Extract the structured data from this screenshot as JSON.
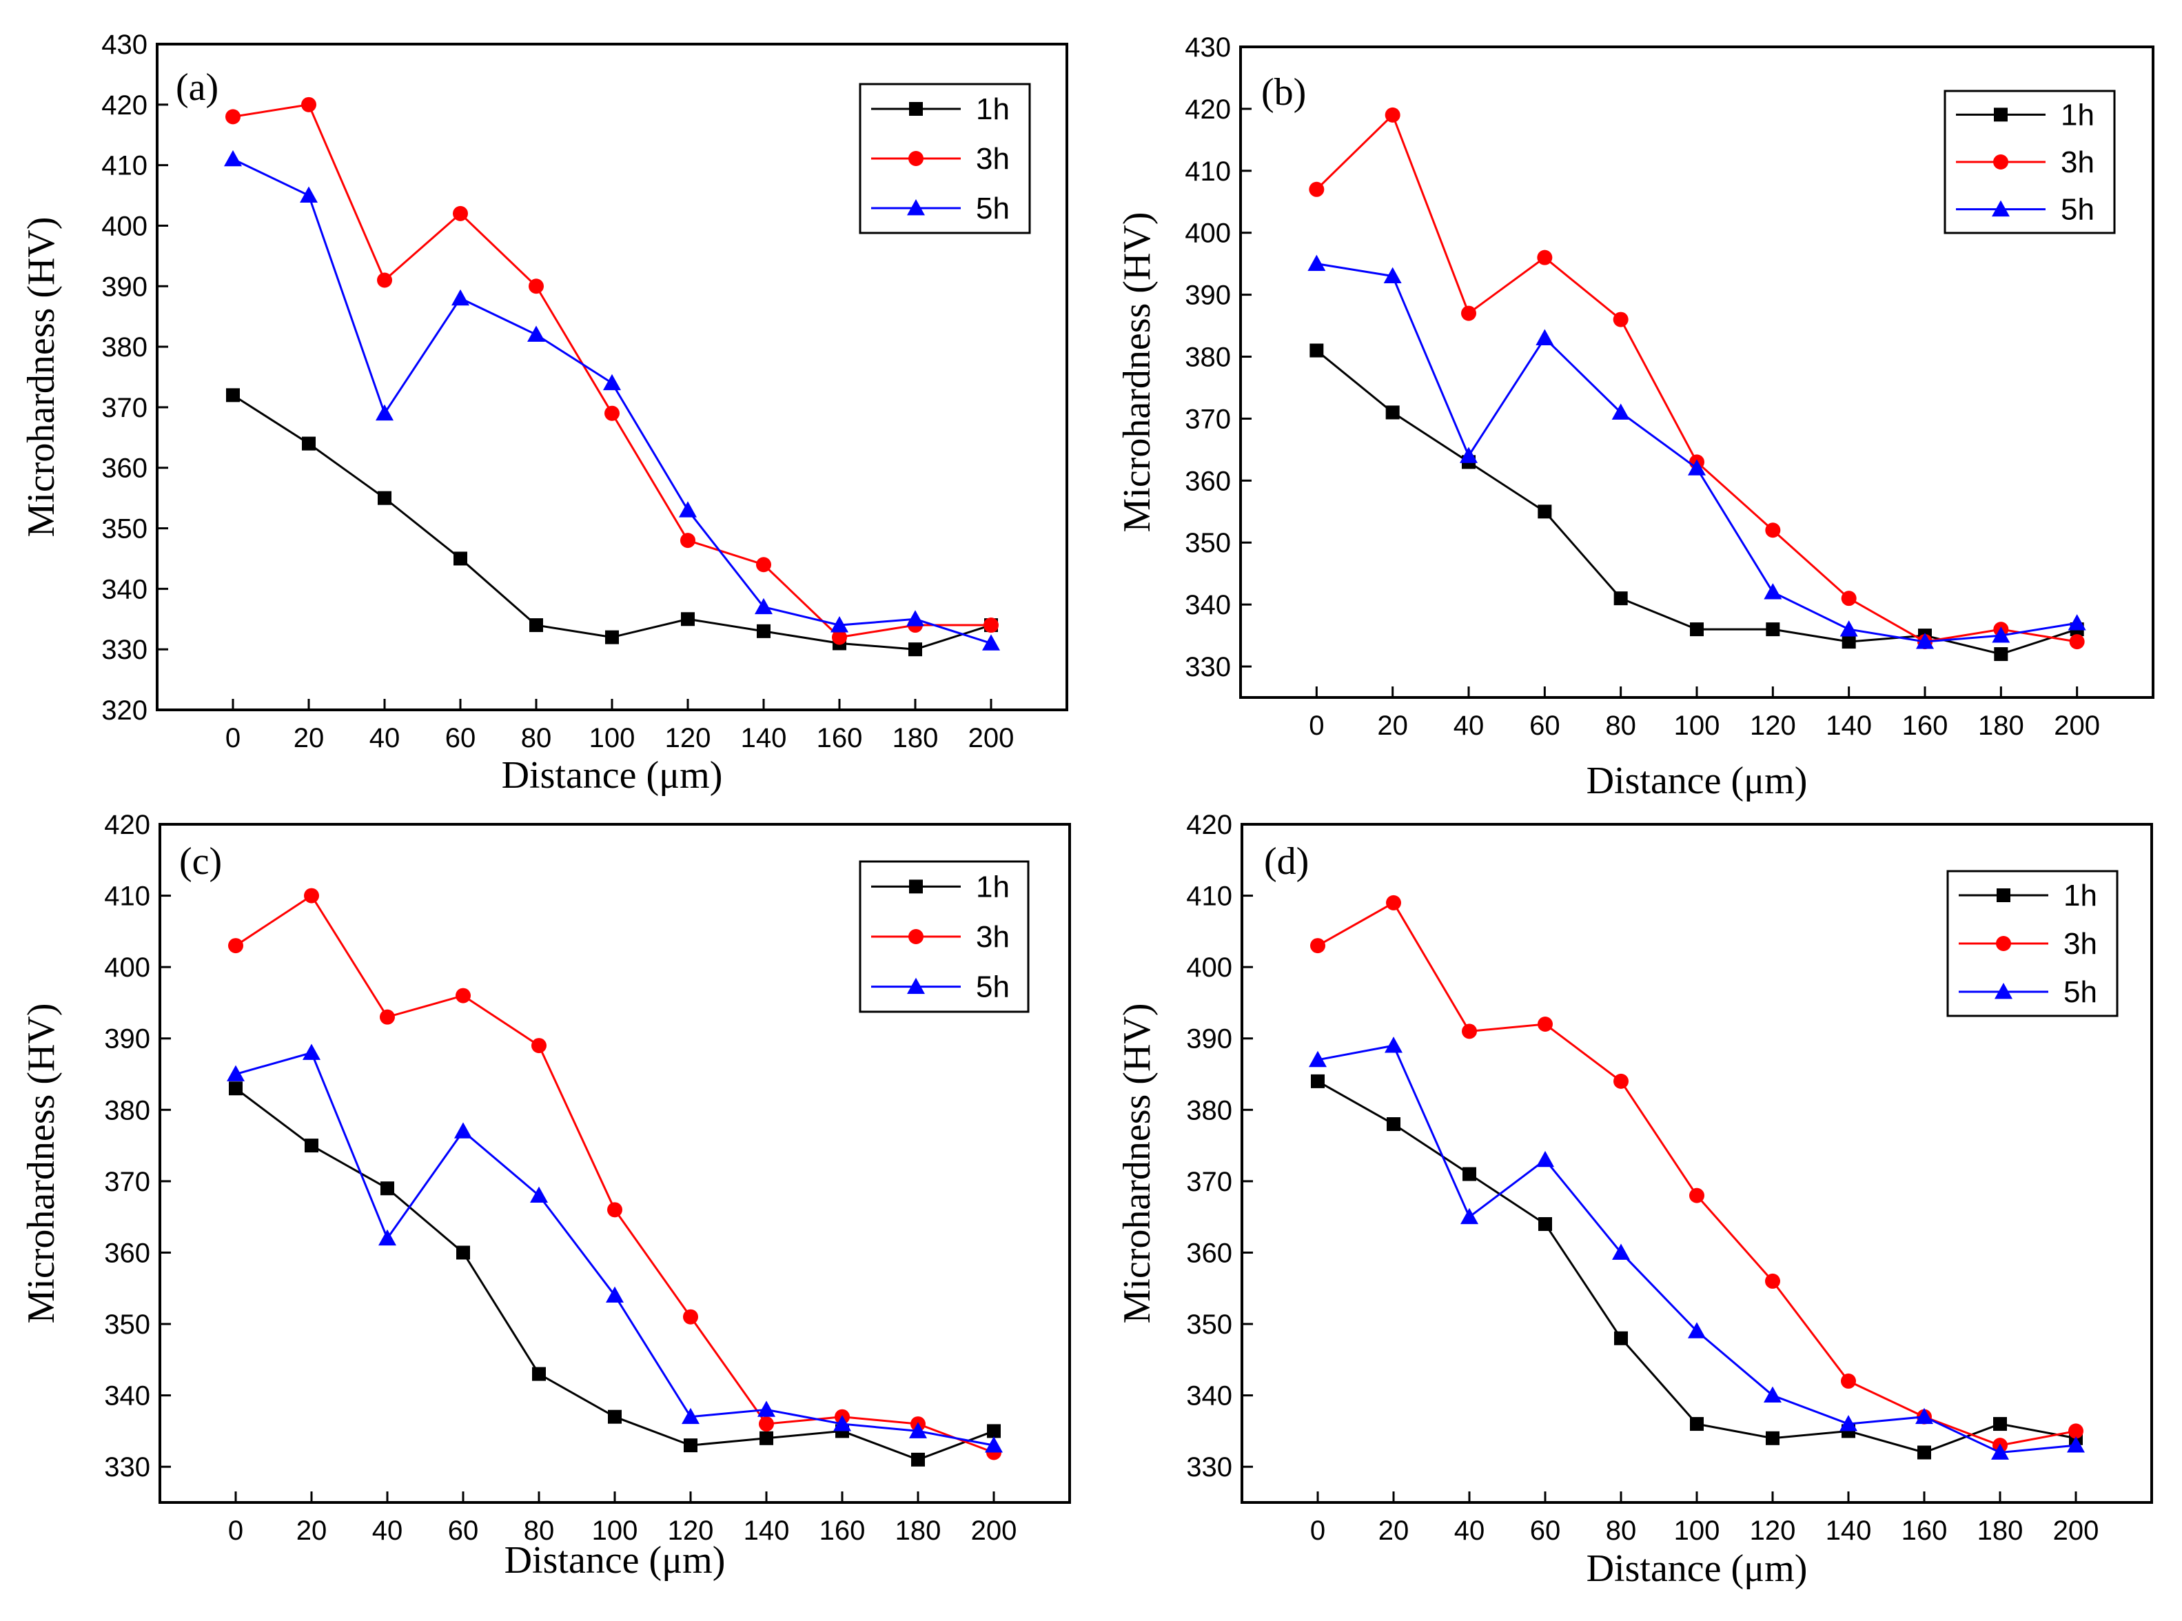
{
  "chart_data": [
    {
      "panel": "(a)",
      "type": "line",
      "xlabel": "Distance (μm)",
      "ylabel": "Microhardness (HV)",
      "x": [
        0,
        20,
        40,
        60,
        80,
        100,
        120,
        140,
        160,
        180,
        200
      ],
      "xlim": [
        -20,
        220
      ],
      "ylim": [
        320,
        430
      ],
      "yticks": [
        320,
        330,
        340,
        350,
        360,
        370,
        380,
        390,
        400,
        410,
        420,
        430
      ],
      "legend_position": "top-right",
      "series": [
        {
          "name": "1h",
          "color": "#000000",
          "marker": "square",
          "values": [
            372,
            364,
            355,
            345,
            334,
            332,
            335,
            333,
            331,
            330,
            334
          ]
        },
        {
          "name": "3h",
          "color": "#ff0000",
          "marker": "circle",
          "values": [
            418,
            420,
            391,
            402,
            390,
            369,
            348,
            344,
            332,
            334,
            334
          ]
        },
        {
          "name": "5h",
          "color": "#0000ff",
          "marker": "triangle",
          "values": [
            411,
            405,
            369,
            388,
            382,
            374,
            353,
            337,
            334,
            335,
            331
          ]
        }
      ]
    },
    {
      "panel": "(b)",
      "type": "line",
      "xlabel": "Distance (μm)",
      "ylabel": "Microhardness (HV)",
      "x": [
        0,
        20,
        40,
        60,
        80,
        100,
        120,
        140,
        160,
        180,
        200
      ],
      "xlim": [
        -20,
        220
      ],
      "ylim": [
        325,
        430
      ],
      "yticks": [
        330,
        340,
        350,
        360,
        370,
        380,
        390,
        400,
        410,
        420,
        430
      ],
      "legend_position": "top-right",
      "series": [
        {
          "name": "1h",
          "color": "#000000",
          "marker": "square",
          "values": [
            381,
            371,
            363,
            355,
            341,
            336,
            336,
            334,
            335,
            332,
            336
          ]
        },
        {
          "name": "3h",
          "color": "#ff0000",
          "marker": "circle",
          "values": [
            407,
            419,
            387,
            396,
            386,
            363,
            352,
            341,
            334,
            336,
            334
          ]
        },
        {
          "name": "5h",
          "color": "#0000ff",
          "marker": "triangle",
          "values": [
            395,
            393,
            364,
            383,
            371,
            362,
            342,
            336,
            334,
            335,
            337
          ]
        }
      ]
    },
    {
      "panel": "(c)",
      "type": "line",
      "xlabel": "Distance (μm)",
      "ylabel": "Microhardness (HV)",
      "x": [
        0,
        20,
        40,
        60,
        80,
        100,
        120,
        140,
        160,
        180,
        200
      ],
      "xlim": [
        -20,
        220
      ],
      "ylim": [
        325,
        420
      ],
      "yticks": [
        330,
        340,
        350,
        360,
        370,
        380,
        390,
        400,
        410,
        420
      ],
      "legend_position": "top-right",
      "series": [
        {
          "name": "1h",
          "color": "#000000",
          "marker": "square",
          "values": [
            383,
            375,
            369,
            360,
            343,
            337,
            333,
            334,
            335,
            331,
            335
          ]
        },
        {
          "name": "3h",
          "color": "#ff0000",
          "marker": "circle",
          "values": [
            403,
            410,
            393,
            396,
            389,
            366,
            351,
            336,
            337,
            336,
            332
          ]
        },
        {
          "name": "5h",
          "color": "#0000ff",
          "marker": "triangle",
          "values": [
            385,
            388,
            362,
            377,
            368,
            354,
            337,
            338,
            336,
            335,
            333
          ]
        }
      ]
    },
    {
      "panel": "(d)",
      "type": "line",
      "xlabel": "Distance (μm)",
      "ylabel": "Microhardness (HV)",
      "x": [
        0,
        20,
        40,
        60,
        80,
        100,
        120,
        140,
        160,
        180,
        200
      ],
      "xlim": [
        -20,
        220
      ],
      "ylim": [
        325,
        420
      ],
      "yticks": [
        330,
        340,
        350,
        360,
        370,
        380,
        390,
        400,
        410,
        420
      ],
      "legend_position": "top-right",
      "series": [
        {
          "name": "1h",
          "color": "#000000",
          "marker": "square",
          "values": [
            384,
            378,
            371,
            364,
            348,
            336,
            334,
            335,
            332,
            336,
            334
          ]
        },
        {
          "name": "3h",
          "color": "#ff0000",
          "marker": "circle",
          "values": [
            403,
            409,
            391,
            392,
            384,
            368,
            356,
            342,
            337,
            333,
            335
          ]
        },
        {
          "name": "5h",
          "color": "#0000ff",
          "marker": "triangle",
          "values": [
            387,
            389,
            365,
            373,
            360,
            349,
            340,
            336,
            337,
            332,
            333
          ]
        }
      ]
    }
  ]
}
